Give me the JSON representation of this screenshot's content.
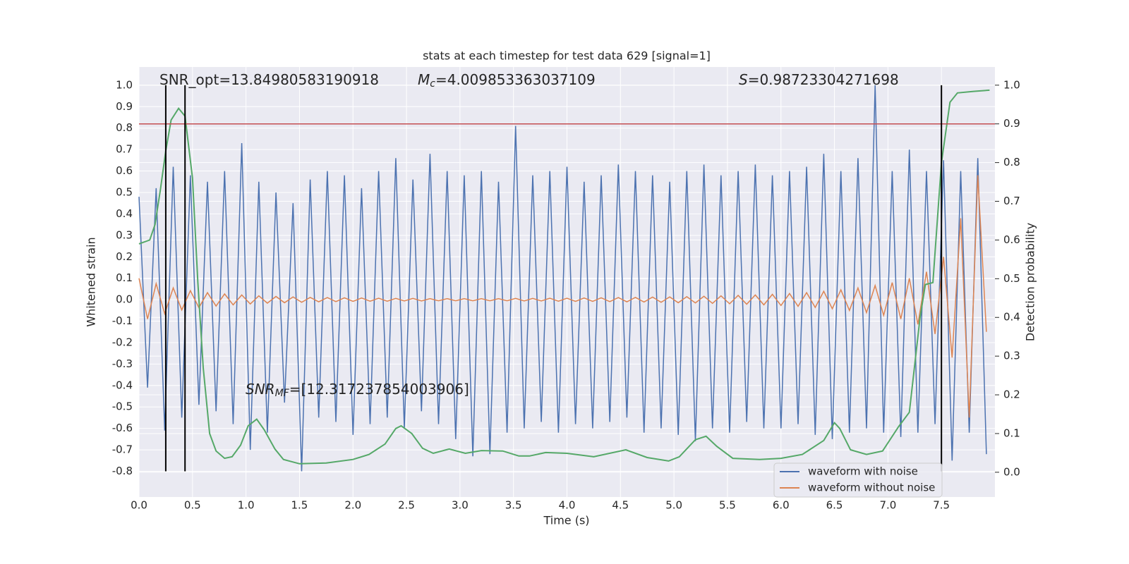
{
  "chart_data": {
    "type": "line",
    "title": "stats at each timestep for test data 629 [signal=1]",
    "xlabel": "Time (s)",
    "ylabel": "Whitened strain",
    "y2label": "Detection probability",
    "xlim": [
      0,
      8
    ],
    "ylim": [
      -0.92,
      1.085
    ],
    "y2lim": [
      -0.064,
      1.047
    ],
    "xticks": [
      {
        "value": 0,
        "label": "0.0"
      },
      0.5,
      {
        "value": 1,
        "label": "1.0"
      },
      1.5,
      {
        "value": 2,
        "label": "2.0"
      },
      2.5,
      {
        "value": 3,
        "label": "3.0"
      },
      3.5,
      {
        "value": 4,
        "label": "4.0"
      },
      4.5,
      {
        "value": 5,
        "label": "5.0"
      },
      5.5,
      {
        "value": 6,
        "label": "6.0"
      },
      6.5,
      {
        "value": 7,
        "label": "7.0"
      },
      7.5
    ],
    "yticks": [
      -0.8,
      -0.7,
      -0.6,
      -0.5,
      -0.4,
      -0.3,
      -0.2,
      -0.1,
      {
        "value": 0,
        "label": "0.0"
      },
      0.1,
      0.2,
      0.3,
      0.4,
      0.5,
      0.6,
      0.7,
      0.8,
      0.9,
      {
        "value": 1,
        "label": "1.0"
      }
    ],
    "y2ticks": [
      {
        "value": 0,
        "label": "0.0"
      },
      0.1,
      0.2,
      0.3,
      0.4,
      0.5,
      0.6,
      0.7,
      0.8,
      0.9,
      {
        "value": 1,
        "label": "1.0"
      }
    ],
    "grid": true,
    "legend": "lower right",
    "x": [
      0,
      0.08,
      0.16,
      0.24,
      0.32,
      0.4,
      0.48,
      0.56,
      0.64,
      0.72,
      0.8,
      0.88,
      0.96,
      1.04,
      1.12,
      1.2,
      1.28,
      1.36,
      1.44,
      1.52,
      1.6,
      1.68,
      1.76,
      1.84,
      1.92,
      2.0,
      2.08,
      2.16,
      2.24,
      2.32,
      2.4,
      2.48,
      2.56,
      2.64,
      2.72,
      2.8,
      2.88,
      2.96,
      3.04,
      3.12,
      3.2,
      3.28,
      3.36,
      3.44,
      3.52,
      3.6,
      3.68,
      3.76,
      3.84,
      3.92,
      4.0,
      4.08,
      4.16,
      4.24,
      4.32,
      4.4,
      4.48,
      4.56,
      4.64,
      4.72,
      4.8,
      4.88,
      4.96,
      5.04,
      5.12,
      5.2,
      5.28,
      5.36,
      5.44,
      5.52,
      5.6,
      5.68,
      5.76,
      5.84,
      5.92,
      6.0,
      6.08,
      6.16,
      6.24,
      6.32,
      6.4,
      6.48,
      6.56,
      6.64,
      6.72,
      6.8,
      6.88,
      6.96,
      7.04,
      7.12,
      7.2,
      7.28,
      7.36,
      7.44,
      7.52,
      7.6,
      7.68,
      7.76,
      7.84,
      7.92
    ],
    "series": [
      {
        "name": "waveform with noise",
        "color": "#4c72b0",
        "values": [
          0.48,
          -0.41,
          0.52,
          -0.61,
          0.62,
          -0.55,
          0.58,
          -0.49,
          0.55,
          -0.52,
          0.6,
          -0.58,
          0.73,
          -0.7,
          0.55,
          -0.62,
          0.5,
          -0.48,
          0.45,
          -0.8,
          0.56,
          -0.55,
          0.6,
          -0.57,
          0.58,
          -0.63,
          0.52,
          -0.58,
          0.6,
          -0.55,
          0.66,
          -0.6,
          0.56,
          -0.52,
          0.68,
          -0.58,
          0.6,
          -0.65,
          0.58,
          -0.73,
          0.6,
          -0.72,
          0.55,
          -0.62,
          0.81,
          -0.6,
          0.58,
          -0.57,
          0.6,
          -0.62,
          0.62,
          -0.58,
          0.55,
          -0.6,
          0.58,
          -0.57,
          0.63,
          -0.55,
          0.6,
          -0.62,
          0.58,
          -0.6,
          0.55,
          -0.63,
          0.6,
          -0.66,
          0.63,
          -0.6,
          0.58,
          -0.62,
          0.6,
          -0.57,
          0.63,
          -0.6,
          0.58,
          -0.6,
          0.6,
          -0.58,
          0.62,
          -0.63,
          0.68,
          -0.65,
          0.6,
          -0.62,
          0.66,
          -0.6,
          1.0,
          -0.62,
          0.6,
          -0.64,
          0.7,
          -0.62,
          0.6,
          -0.58,
          0.65,
          -0.75,
          0.6,
          -0.62,
          0.66,
          -0.72
        ]
      },
      {
        "name": "waveform without noise",
        "color": "#dd8452",
        "values": [
          0.1,
          -0.09,
          0.075,
          -0.065,
          0.055,
          -0.048,
          0.042,
          -0.037,
          0.033,
          -0.03,
          0.027,
          -0.024,
          0.022,
          -0.02,
          0.018,
          -0.016,
          0.015,
          -0.014,
          0.013,
          -0.012,
          0.011,
          -0.01,
          0.01,
          -0.009,
          0.009,
          -0.008,
          0.008,
          -0.007,
          0.007,
          -0.007,
          0.006,
          -0.006,
          0.006,
          -0.006,
          0.005,
          -0.005,
          0.005,
          -0.005,
          0.005,
          -0.005,
          0.005,
          -0.005,
          0.005,
          -0.005,
          0.006,
          -0.006,
          0.006,
          -0.006,
          0.007,
          -0.007,
          0.007,
          -0.008,
          0.008,
          -0.008,
          0.009,
          -0.009,
          0.01,
          -0.01,
          0.011,
          -0.011,
          0.012,
          -0.012,
          0.013,
          -0.014,
          0.014,
          -0.015,
          0.016,
          -0.017,
          0.018,
          -0.019,
          0.02,
          -0.021,
          0.022,
          -0.024,
          0.025,
          -0.027,
          0.029,
          -0.031,
          0.033,
          -0.036,
          0.039,
          -0.042,
          0.046,
          -0.05,
          0.055,
          -0.06,
          0.066,
          -0.073,
          0.08,
          -0.09,
          0.1,
          -0.115,
          0.13,
          -0.16,
          0.2,
          -0.27,
          0.38,
          -0.55,
          0.58,
          -0.15
        ]
      }
    ],
    "probability": {
      "color": "#55a868",
      "axis": "y2",
      "x": [
        0,
        0.1,
        0.15,
        0.2,
        0.25,
        0.3,
        0.37,
        0.43,
        0.5,
        0.55,
        0.6,
        0.66,
        0.72,
        0.8,
        0.87,
        0.95,
        1.02,
        1.1,
        1.17,
        1.27,
        1.35,
        1.5,
        1.75,
        2.0,
        2.15,
        2.3,
        2.4,
        2.45,
        2.55,
        2.65,
        2.75,
        2.9,
        3.05,
        3.2,
        3.4,
        3.55,
        3.65,
        3.8,
        4.0,
        4.25,
        4.55,
        4.75,
        4.95,
        5.05,
        5.2,
        5.3,
        5.4,
        5.55,
        5.8,
        6.0,
        6.2,
        6.4,
        6.5,
        6.55,
        6.65,
        6.8,
        6.95,
        7.1,
        7.2,
        7.3,
        7.35,
        7.42,
        7.5,
        7.58,
        7.65,
        7.8,
        7.95
      ],
      "values": [
        0.59,
        0.6,
        0.64,
        0.73,
        0.83,
        0.91,
        0.94,
        0.92,
        0.76,
        0.49,
        0.27,
        0.1,
        0.055,
        0.036,
        0.04,
        0.07,
        0.12,
        0.137,
        0.11,
        0.06,
        0.033,
        0.022,
        0.024,
        0.033,
        0.046,
        0.073,
        0.113,
        0.12,
        0.1,
        0.062,
        0.049,
        0.06,
        0.049,
        0.056,
        0.055,
        0.042,
        0.042,
        0.051,
        0.049,
        0.04,
        0.058,
        0.038,
        0.029,
        0.04,
        0.084,
        0.093,
        0.067,
        0.036,
        0.033,
        0.036,
        0.046,
        0.082,
        0.128,
        0.113,
        0.058,
        0.046,
        0.055,
        0.118,
        0.155,
        0.4,
        0.485,
        0.49,
        0.8,
        0.956,
        0.98,
        0.984,
        0.987
      ]
    },
    "threshold": {
      "value": 0.9,
      "axis": "y2",
      "color": "#c44e52"
    },
    "vlines": {
      "x": [
        0.25,
        0.43,
        7.5
      ],
      "ymin": -0.8,
      "ymax": 1.0,
      "color": "#000000"
    },
    "annotations": [
      {
        "text": "SNR_opt=13.84980583190918"
      },
      {
        "symbol": "M",
        "sub": "c",
        "text": "=4.009853363037109"
      },
      {
        "symbol": "S",
        "text": "=0.98723304271698"
      },
      {
        "symbol": "SNR",
        "sub": "MF",
        "text": "=[12.317237854003906]"
      }
    ]
  }
}
